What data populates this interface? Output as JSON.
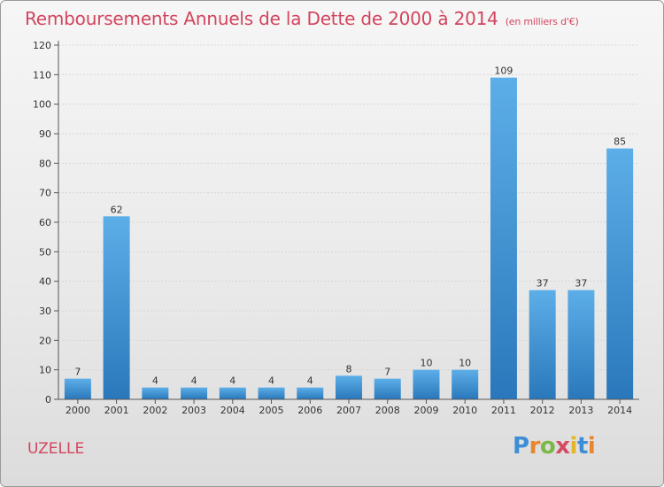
{
  "header": {
    "title": "Remboursements Annuels de la Dette de 2000 à 2014",
    "unit": "(en milliers d'€)"
  },
  "footer": {
    "commune": "UZELLE",
    "logo_text": "Proxiti"
  },
  "colors": {
    "bar_top": "#5caee8",
    "bar_bottom": "#2a78bb",
    "title": "#d2455e",
    "axis": "#555555"
  },
  "chart_data": {
    "type": "bar",
    "categories": [
      "2000",
      "2001",
      "2002",
      "2003",
      "2004",
      "2005",
      "2006",
      "2007",
      "2008",
      "2009",
      "2010",
      "2011",
      "2012",
      "2013",
      "2014"
    ],
    "values": [
      7,
      62,
      4,
      4,
      4,
      4,
      4,
      8,
      7,
      10,
      10,
      109,
      37,
      37,
      85
    ],
    "title": "Remboursements Annuels de la Dette de 2000 à 2014",
    "xlabel": "",
    "ylabel": "",
    "ylim": [
      0,
      120
    ],
    "yticks": [
      0,
      10,
      20,
      30,
      40,
      50,
      60,
      70,
      80,
      90,
      100,
      110,
      120
    ],
    "grid": true,
    "data_labels": true
  }
}
